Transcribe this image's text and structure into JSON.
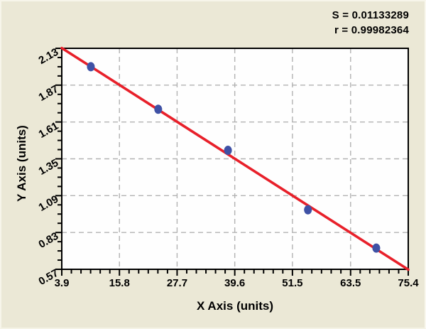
{
  "annotation": {
    "line1": "S = 0.01133289",
    "line2": "r = 0.99982364"
  },
  "chart_data": {
    "type": "scatter",
    "title": "",
    "xlabel": "X Axis (units)",
    "ylabel": "Y Axis (units)",
    "xlim": [
      3.9,
      75.4
    ],
    "ylim": [
      0.57,
      2.13
    ],
    "x_ticks": [
      3.9,
      15.8,
      27.7,
      39.6,
      51.5,
      63.5,
      75.4
    ],
    "y_ticks": [
      0.57,
      0.83,
      1.09,
      1.35,
      1.61,
      1.87,
      2.13
    ],
    "x_minor_divisions": 6,
    "y_minor_divisions": 4,
    "grid": true,
    "legend": "none",
    "points": [
      {
        "x": 9.9,
        "y": 2.0
      },
      {
        "x": 23.8,
        "y": 1.7
      },
      {
        "x": 38.2,
        "y": 1.41
      },
      {
        "x": 54.7,
        "y": 0.99
      },
      {
        "x": 68.8,
        "y": 0.72
      }
    ],
    "fit_line": {
      "x1": 3.9,
      "y1": 2.132,
      "x2": 75.4,
      "y2": 0.568
    },
    "stats": {
      "S": "0.01133289",
      "r": "0.99982364"
    },
    "colors": {
      "page_bg": "#ebe8d6",
      "plot_bg": "#fefefe",
      "axis": "#000000",
      "grid": "#b2b2b2",
      "fit_line": "#e8202a",
      "point": "#3f51a5"
    }
  }
}
